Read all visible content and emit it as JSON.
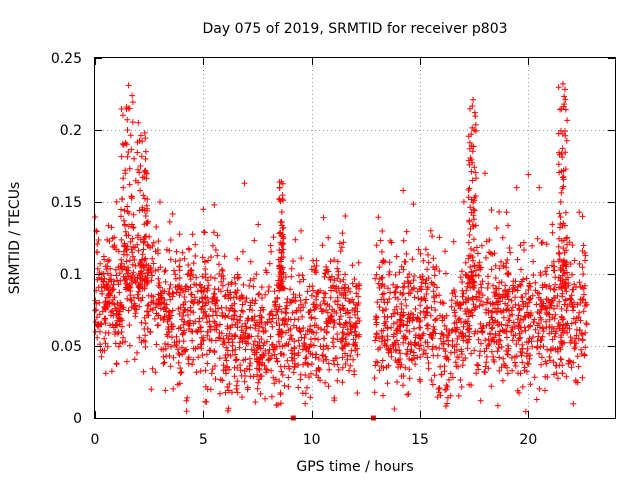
{
  "chart_data": {
    "type": "scatter",
    "title": "Day 075 of 2019, SRMTID for receiver p803",
    "xlabel": "GPS time / hours",
    "ylabel": "SRMTID / TECUs",
    "xlim": [
      0,
      24
    ],
    "ylim": [
      0,
      0.25
    ],
    "xticks": [
      0,
      5,
      10,
      15,
      20
    ],
    "xtick_labels": [
      "0",
      "5",
      "10",
      "15",
      "20"
    ],
    "yticks": [
      0,
      0.05,
      0.1,
      0.15,
      0.2,
      0.25
    ],
    "ytick_labels": [
      "0",
      "0.05",
      "0.1",
      "0.15",
      "0.2",
      "0.25"
    ],
    "grid": true,
    "marker": "+",
    "color": "#ff0000",
    "gaps": [
      [
        12.2,
        12.9
      ],
      [
        22.7,
        24
      ]
    ],
    "data_gap_markers": [
      9.15,
      12.85
    ],
    "bursts": [
      {
        "x": 1.5,
        "width": 0.6,
        "peak": 0.231
      },
      {
        "x": 2.2,
        "width": 0.5,
        "peak": 0.198
      },
      {
        "x": 17.4,
        "width": 0.4,
        "peak": 0.221
      },
      {
        "x": 21.6,
        "width": 0.4,
        "peak": 0.232
      },
      {
        "x": 8.6,
        "width": 0.2,
        "peak": 0.164
      }
    ],
    "series": [
      {
        "name": "SRMTID",
        "note": "dense scatter; representative points",
        "points": [
          [
            0.05,
            0.13
          ],
          [
            0.1,
            0.115
          ],
          [
            0.2,
            0.08
          ],
          [
            0.3,
            0.065
          ],
          [
            0.4,
            0.1
          ],
          [
            0.5,
            0.031
          ],
          [
            0.7,
            0.085
          ],
          [
            0.9,
            0.12
          ],
          [
            1.0,
            0.075
          ],
          [
            1.2,
            0.14
          ],
          [
            1.3,
            0.16
          ],
          [
            1.4,
            0.17
          ],
          [
            1.5,
            0.2
          ],
          [
            1.55,
            0.231
          ],
          [
            1.6,
            0.215
          ],
          [
            1.8,
            0.18
          ],
          [
            2.0,
            0.205
          ],
          [
            2.1,
            0.175
          ],
          [
            2.3,
            0.198
          ],
          [
            2.35,
            0.185
          ],
          [
            2.6,
            0.02
          ],
          [
            3.0,
            0.15
          ],
          [
            3.5,
            0.11
          ],
          [
            4.0,
            0.09
          ],
          [
            4.5,
            0.06
          ],
          [
            5.0,
            0.145
          ],
          [
            5.2,
            0.02
          ],
          [
            5.5,
            0.148
          ],
          [
            6.0,
            0.07
          ],
          [
            6.5,
            0.04
          ],
          [
            6.9,
            0.163
          ],
          [
            7.5,
            0.05
          ],
          [
            8.0,
            0.045
          ],
          [
            8.6,
            0.164
          ],
          [
            9.0,
            0.08
          ],
          [
            9.5,
            0.03
          ],
          [
            9.7,
            0.01
          ],
          [
            10.0,
            0.06
          ],
          [
            10.5,
            0.12
          ],
          [
            11.0,
            0.04
          ],
          [
            11.5,
            0.09
          ],
          [
            12.0,
            0.05
          ],
          [
            13.0,
            0.12
          ],
          [
            13.5,
            0.07
          ],
          [
            14.0,
            0.04
          ],
          [
            14.5,
            0.1
          ],
          [
            15.0,
            0.055
          ],
          [
            15.5,
            0.13
          ],
          [
            16.0,
            0.03
          ],
          [
            16.5,
            0.05
          ],
          [
            17.0,
            0.08
          ],
          [
            17.3,
            0.187
          ],
          [
            17.45,
            0.221
          ],
          [
            17.5,
            0.2
          ],
          [
            17.8,
            0.012
          ],
          [
            18.0,
            0.17
          ],
          [
            18.5,
            0.09
          ],
          [
            19.0,
            0.06
          ],
          [
            19.5,
            0.11
          ],
          [
            20.0,
            0.169
          ],
          [
            20.5,
            0.16
          ],
          [
            21.0,
            0.04
          ],
          [
            21.5,
            0.15
          ],
          [
            21.6,
            0.232
          ],
          [
            21.65,
            0.218
          ],
          [
            21.7,
            0.196
          ],
          [
            22.0,
            0.08
          ],
          [
            22.2,
            0.025
          ],
          [
            22.5,
            0.14
          ],
          [
            22.7,
            0.065
          ]
        ]
      }
    ]
  }
}
